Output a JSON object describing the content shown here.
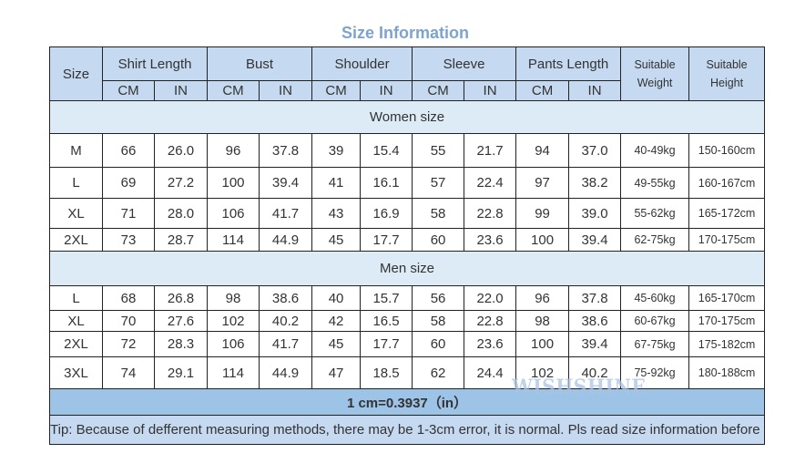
{
  "title": "Size Information",
  "header": {
    "size": "Size",
    "groups": [
      "Shirt Length",
      "Bust",
      "Shoulder",
      "Sleeve",
      "Pants Length"
    ],
    "units": [
      "CM",
      "IN"
    ],
    "suitable_weight": "Suitable Weight",
    "suitable_height": "Suitable Height"
  },
  "sections": [
    {
      "label": "Women size",
      "rows": [
        {
          "size": "M",
          "values": [
            "66",
            "26.0",
            "96",
            "37.8",
            "39",
            "15.4",
            "55",
            "21.7",
            "94",
            "37.0"
          ],
          "weight": "40-49kg",
          "height": "150-160cm"
        },
        {
          "size": "L",
          "values": [
            "69",
            "27.2",
            "100",
            "39.4",
            "41",
            "16.1",
            "57",
            "22.4",
            "97",
            "38.2"
          ],
          "weight": "49-55kg",
          "height": "160-167cm"
        },
        {
          "size": "XL",
          "values": [
            "71",
            "28.0",
            "106",
            "41.7",
            "43",
            "16.9",
            "58",
            "22.8",
            "99",
            "39.0"
          ],
          "weight": "55-62kg",
          "height": "165-172cm"
        },
        {
          "size": "2XL",
          "values": [
            "73",
            "28.7",
            "114",
            "44.9",
            "45",
            "17.7",
            "60",
            "23.6",
            "100",
            "39.4"
          ],
          "weight": "62-75kg",
          "height": "170-175cm"
        }
      ]
    },
    {
      "label": "Men size",
      "rows": [
        {
          "size": "L",
          "values": [
            "68",
            "26.8",
            "98",
            "38.6",
            "40",
            "15.7",
            "56",
            "22.0",
            "96",
            "37.8"
          ],
          "weight": "45-60kg",
          "height": "165-170cm"
        },
        {
          "size": "XL",
          "values": [
            "70",
            "27.6",
            "102",
            "40.2",
            "42",
            "16.5",
            "58",
            "22.8",
            "98",
            "38.6"
          ],
          "weight": "60-67kg",
          "height": "170-175cm"
        },
        {
          "size": "2XL",
          "values": [
            "72",
            "28.3",
            "106",
            "41.7",
            "45",
            "17.7",
            "60",
            "23.6",
            "100",
            "39.4"
          ],
          "weight": "67-75kg",
          "height": "175-182cm"
        },
        {
          "size": "3XL",
          "values": [
            "74",
            "29.1",
            "114",
            "44.9",
            "47",
            "18.5",
            "62",
            "24.4",
            "102",
            "40.2"
          ],
          "weight": "75-92kg",
          "height": "180-188cm"
        }
      ]
    }
  ],
  "conversion": "1 cm=0.3937（in）",
  "tip": "Tip: Because of defferent measuring methods, there may be 1-3cm error, it is normal. Pls read size information before choose size, thanks.",
  "watermark": "WISHSHINE"
}
